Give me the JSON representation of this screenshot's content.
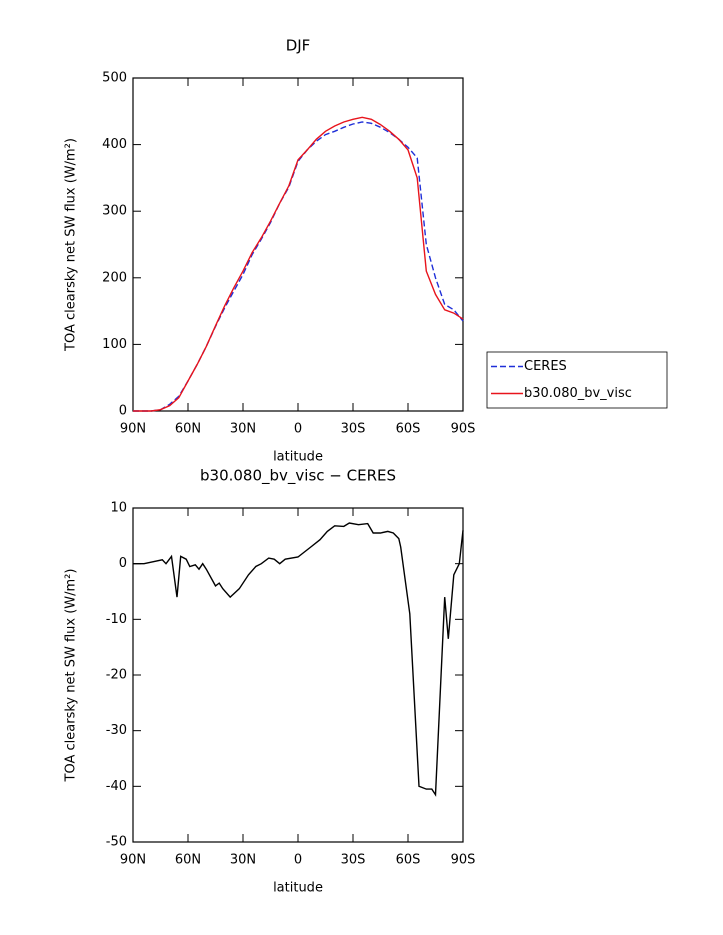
{
  "chart_data": [
    {
      "type": "line",
      "title": "DJF",
      "xlabel": "latitude",
      "ylabel": "TOA clearsky net SW flux (W/m²)",
      "x": [
        90,
        85,
        80,
        75,
        70,
        65,
        60,
        55,
        50,
        45,
        40,
        35,
        30,
        25,
        20,
        15,
        10,
        5,
        0,
        -5,
        -10,
        -15,
        -20,
        -25,
        -30,
        -35,
        -40,
        -45,
        -50,
        -55,
        -60,
        -65,
        -70,
        -75,
        -80,
        -85,
        -90
      ],
      "series": [
        {
          "name": "CERES",
          "color": "#1f2fd8",
          "dash": "dashed",
          "values": [
            0,
            0,
            0,
            2,
            10,
            22,
            45,
            70,
            97,
            127,
            155,
            180,
            205,
            235,
            258,
            283,
            312,
            336,
            375,
            392,
            405,
            415,
            420,
            426,
            431,
            434,
            432,
            426,
            418,
            408,
            396,
            380,
            250,
            200,
            160,
            152,
            135
          ]
        },
        {
          "name": "b30.080_bv_visc",
          "color": "#e8141c",
          "dash": "solid",
          "values": [
            0,
            0,
            0,
            2,
            8,
            20,
            45,
            70,
            97,
            128,
            158,
            185,
            210,
            238,
            260,
            285,
            312,
            338,
            377,
            392,
            408,
            420,
            428,
            434,
            438,
            441,
            438,
            430,
            420,
            408,
            392,
            350,
            210,
            175,
            152,
            147,
            138
          ]
        }
      ],
      "xlim": [
        90,
        -90
      ],
      "xticks": [
        {
          "value": 90,
          "label": "90N"
        },
        {
          "value": 60,
          "label": "60N"
        },
        {
          "value": 30,
          "label": "30N"
        },
        0,
        {
          "value": -30,
          "label": "30S"
        },
        {
          "value": -60,
          "label": "60S"
        },
        {
          "value": -90,
          "label": "90S"
        }
      ],
      "ylim": [
        0,
        500
      ],
      "yticks": [
        0,
        100,
        200,
        300,
        400,
        500
      ],
      "legend": "right"
    },
    {
      "type": "line",
      "title": "b30.080_bv_visc − CERES",
      "xlabel": "latitude",
      "ylabel": "TOA clearsky net SW flux (W/m²)",
      "x": [
        90,
        84,
        74,
        72,
        69,
        66,
        64,
        61,
        59,
        56,
        54,
        52,
        50,
        45,
        43,
        41,
        37,
        32,
        27,
        23,
        20,
        16,
        13,
        10,
        7,
        0,
        -7,
        -12,
        -16,
        -20,
        -25,
        -28,
        -33,
        -38,
        -41,
        -45,
        -49,
        -52,
        -55,
        -56,
        -61,
        -66,
        -70,
        -73,
        -75,
        -80,
        -82,
        -85,
        -88,
        -90
      ],
      "series": [
        {
          "name": "b30.080_bv_visc − CERES",
          "color": "#000000",
          "values": [
            0,
            0,
            0.7,
            0,
            1.3,
            -6,
            1.3,
            0.8,
            -0.5,
            -0.2,
            -1,
            0,
            -1,
            -4,
            -3.5,
            -4.5,
            -6,
            -4.5,
            -2,
            -0.5,
            0,
            1,
            0.8,
            0,
            0.8,
            1.2,
            3,
            4.3,
            5.8,
            6.8,
            6.7,
            7.3,
            7,
            7.2,
            5.5,
            5.5,
            5.8,
            5.5,
            4.5,
            3,
            -9,
            -40,
            -40.5,
            -40.5,
            -41.5,
            -6,
            -13.5,
            -2,
            0,
            6
          ]
        }
      ],
      "xlim": [
        90,
        -90
      ],
      "xticks": [
        {
          "value": 90,
          "label": "90N"
        },
        {
          "value": 60,
          "label": "60N"
        },
        {
          "value": 30,
          "label": "30N"
        },
        0,
        {
          "value": -30,
          "label": "30S"
        },
        {
          "value": -60,
          "label": "60S"
        },
        {
          "value": -90,
          "label": "90S"
        }
      ],
      "ylim": [
        -50,
        10
      ],
      "yticks": [
        -50,
        -40,
        -30,
        -20,
        -10,
        0,
        10
      ]
    }
  ]
}
